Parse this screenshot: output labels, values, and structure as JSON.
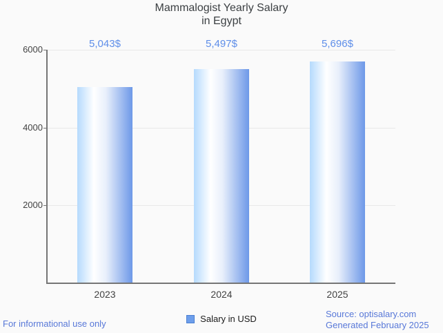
{
  "title": {
    "line1": "Mammalogist Yearly Salary",
    "line2": "in Egypt"
  },
  "chart_data": {
    "type": "bar",
    "title": "Mammalogist Yearly Salary in Egypt",
    "categories": [
      "2023",
      "2024",
      "2025"
    ],
    "series": [
      {
        "name": "Salary in USD",
        "values": [
          5043,
          5497,
          5696
        ]
      }
    ],
    "annotations": [
      "5,043$",
      "5,497$",
      "5,696$"
    ],
    "ylim": [
      0,
      6000
    ],
    "yticks": [
      2000,
      4000,
      6000
    ],
    "grid": "horizontal",
    "legend_position": "bottom",
    "bar_gradient": [
      "#b5dafd",
      "#ffffff",
      "#6d98e8"
    ]
  },
  "legend": {
    "label": "Salary in USD",
    "swatch_fill": "#6d9eeb",
    "swatch_border": "#4a7fd1"
  },
  "footer": {
    "left": "For informational use only",
    "source": "Source: optisalary.com",
    "generated": "Generated February 2025"
  },
  "colors": {
    "background": "#fafafa",
    "title_text": "#3c4043",
    "axis": "#757575",
    "gridline": "#e8e8e8",
    "tick_text": "#424242",
    "annotation_text": "#5e8ee9",
    "footer_text": "#5878d8",
    "legend_text": "#1a1a1a"
  }
}
